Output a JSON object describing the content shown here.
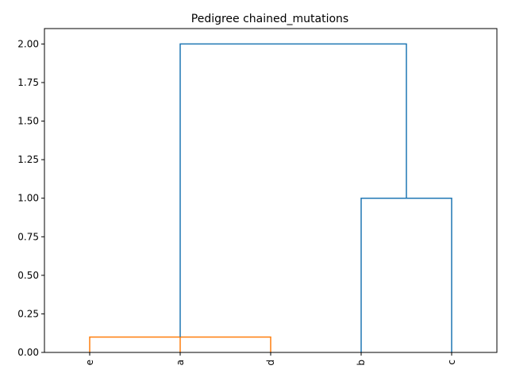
{
  "chart_data": {
    "type": "dendrogram",
    "title": "Pedigree chained_mutations",
    "xlabel": "",
    "ylabel": "",
    "ylim": [
      0,
      2.1
    ],
    "yticks": [
      0.0,
      0.25,
      0.5,
      0.75,
      1.0,
      1.25,
      1.5,
      1.75,
      2.0
    ],
    "ytick_labels": [
      "0.00",
      "0.25",
      "0.50",
      "0.75",
      "1.00",
      "1.25",
      "1.50",
      "1.75",
      "2.00"
    ],
    "leaves": [
      "e",
      "a",
      "d",
      "b",
      "c"
    ],
    "grid": false,
    "colors": {
      "cluster_1": "#ff7f0e",
      "cluster_2": "#1f77b4",
      "above_threshold": "#1f77b4"
    },
    "links": [
      {
        "left": [
          0,
          1
        ],
        "right": [
          1,
          1
        ],
        "height": 0.1,
        "leg_bottoms": [
          0,
          0
        ],
        "color": "cluster_1",
        "note": "e + a"
      },
      {
        "left": [
          1,
          1
        ],
        "right": [
          2,
          1
        ],
        "height": 0.1,
        "leg_bottoms": [
          0.1,
          0
        ],
        "color": "cluster_1",
        "note": "(e,a) + d"
      },
      {
        "left": [
          3,
          1
        ],
        "right": [
          4,
          1
        ],
        "height": 1.0,
        "leg_bottoms": [
          0,
          0
        ],
        "color": "cluster_2",
        "note": "b + c"
      },
      {
        "left": [
          1,
          1
        ],
        "right": [
          3.5,
          1
        ],
        "height": 2.0,
        "leg_bottoms": [
          0.1,
          1.0
        ],
        "color": "above_threshold",
        "note": "root"
      }
    ]
  }
}
